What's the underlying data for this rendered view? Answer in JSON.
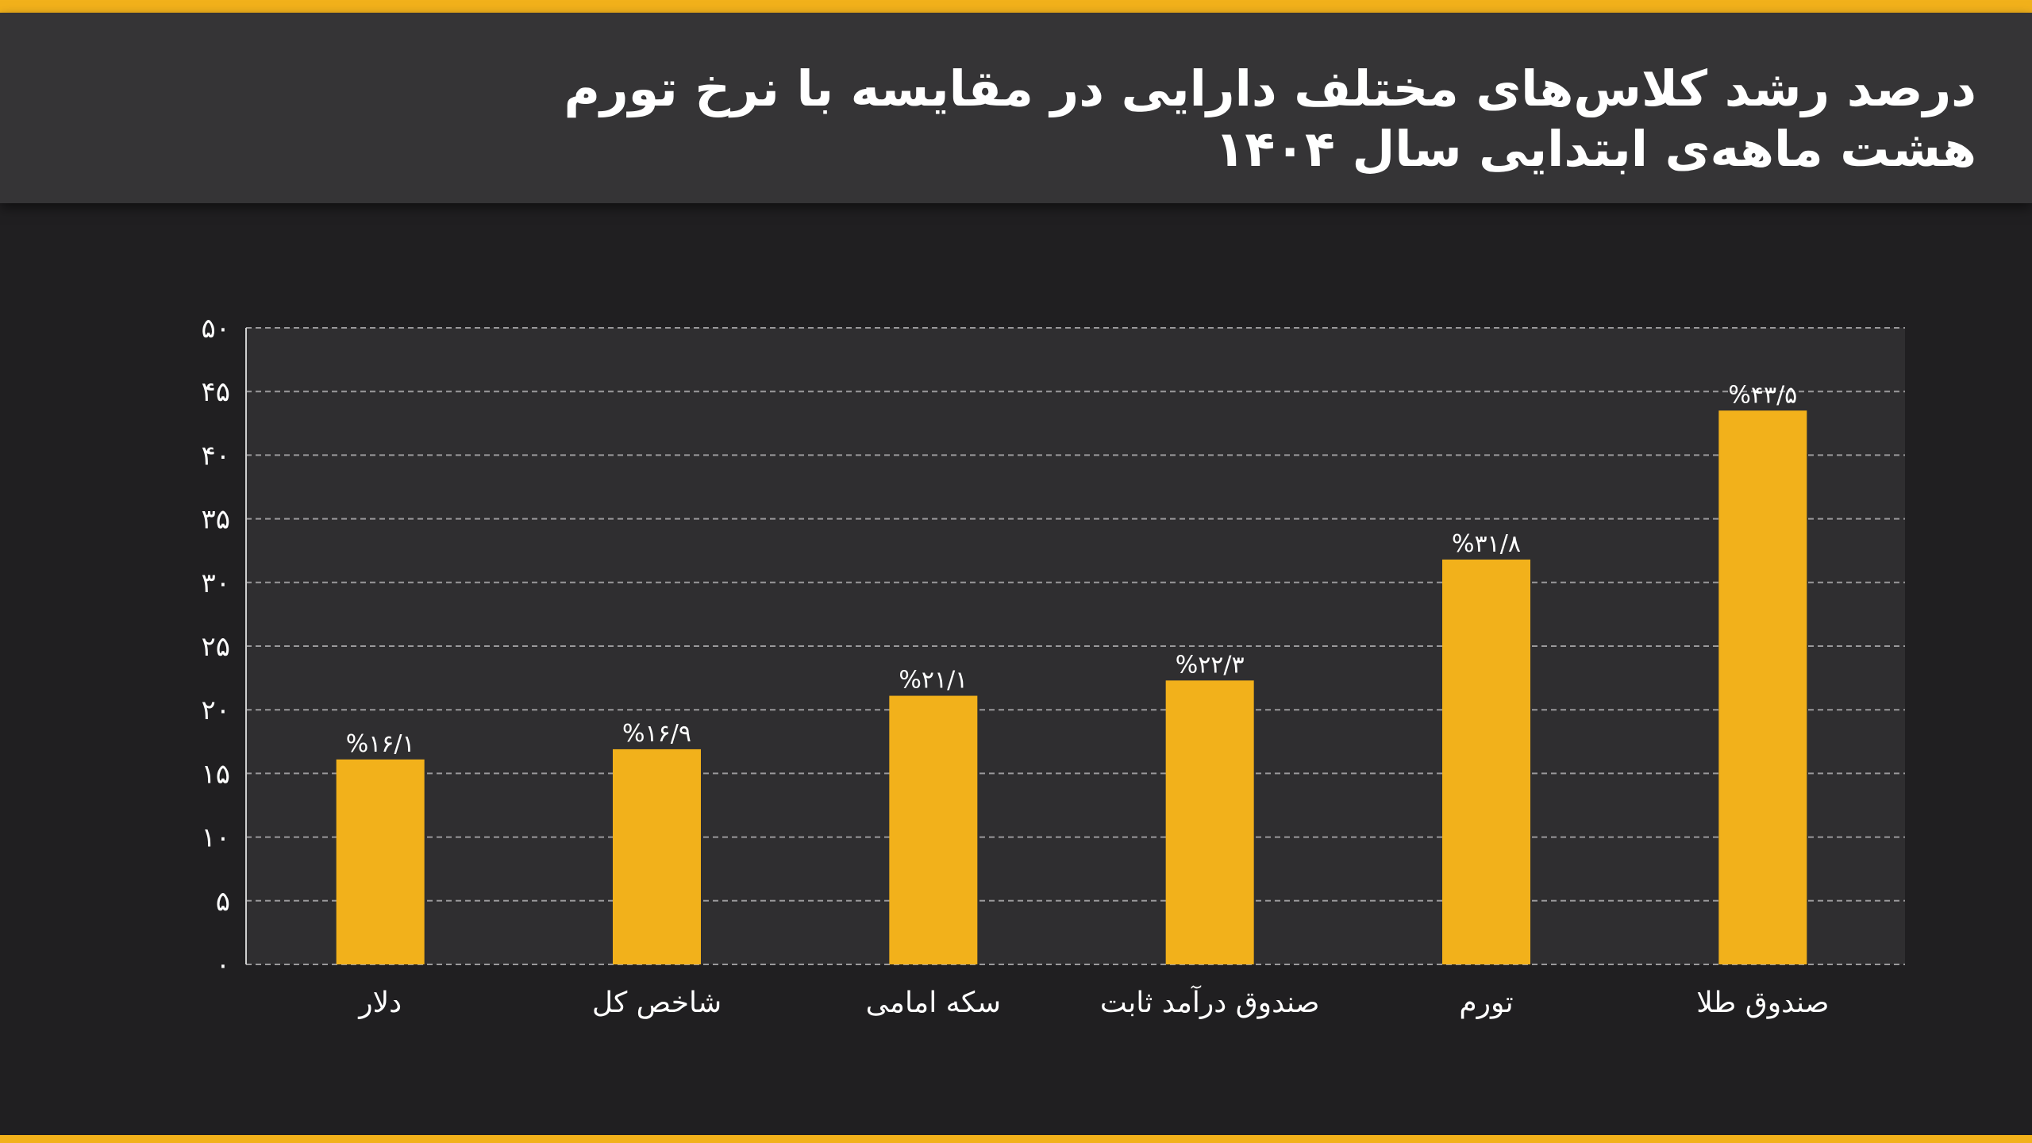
{
  "header": {
    "title_line1": "درصد رشد کلاس‌های مختلف دارایی در مقایسه با نرخ تورم",
    "title_line2": "هشت ماهه‌ی ابتدایی سال ۱۴۰۴"
  },
  "colors": {
    "accent": "#f2b11b",
    "background": "#201f21",
    "plot_background": "#2f2e30",
    "header_background": "#353436"
  },
  "chart_data": {
    "type": "bar",
    "title": "درصد رشد کلاس‌های مختلف دارایی در مقایسه با نرخ تورم هشت ماهه‌ی ابتدایی سال ۱۴۰۴",
    "categories": [
      "دلار",
      "شاخص کل",
      "سکه امامی",
      "صندوق درآمد ثابت",
      "تورم",
      "صندوق طلا"
    ],
    "values": [
      16.1,
      16.9,
      21.1,
      22.3,
      31.8,
      43.5
    ],
    "data_labels": [
      "%۱۶/۱",
      "%۱۶/۹",
      "%۲۱/۱",
      "%۲۲/۳",
      "%۳۱/۸",
      "%۴۳/۵"
    ],
    "ylim": [
      0,
      50
    ],
    "yticks": [
      0,
      5,
      10,
      15,
      20,
      25,
      30,
      35,
      40,
      45,
      50
    ],
    "ytick_labels": [
      "۰",
      "۵",
      "۱۰",
      "۱۵",
      "۲۰",
      "۲۵",
      "۳۰",
      "۳۵",
      "۴۰",
      "۴۵",
      "۵۰"
    ],
    "grid": true,
    "legend": "none",
    "xlabel": "",
    "ylabel": ""
  }
}
